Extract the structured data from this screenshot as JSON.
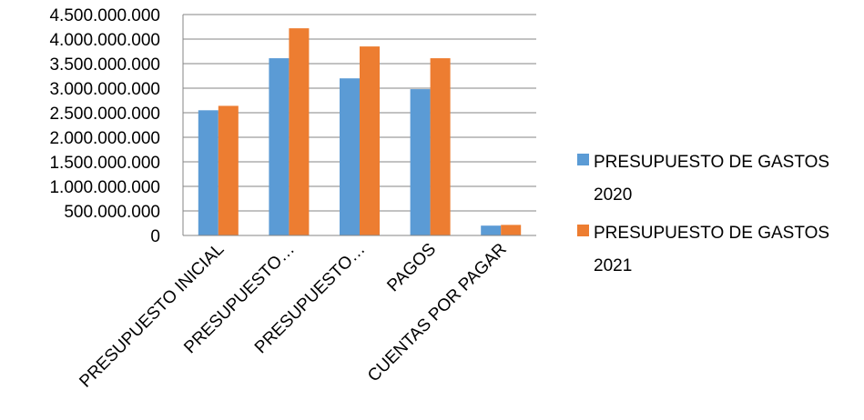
{
  "chart_data": {
    "type": "bar",
    "categories": [
      "PRESUPUESTO INICIAL",
      "PRESUPUESTO…",
      "PRESUPUESTO…",
      "PAGOS",
      "CUENTAS POR PAGAR"
    ],
    "series": [
      {
        "name": "PRESUPUESTO DE GASTOS 2020",
        "legend_lines": [
          "PRESUPUESTO DE GASTOS",
          "2020"
        ],
        "color": "#5B9BD5",
        "values": [
          2550000000,
          3610000000,
          3200000000,
          2980000000,
          200000000
        ]
      },
      {
        "name": "PRESUPUESTO DE GASTOS 2021",
        "legend_lines": [
          "PRESUPUESTO DE GASTOS",
          "2021"
        ],
        "color": "#ED7D31",
        "values": [
          2640000000,
          4220000000,
          3850000000,
          3610000000,
          215000000
        ]
      }
    ],
    "ylim": [
      0,
      4500000000
    ],
    "yticks": [
      "0",
      "500.000.000",
      "1.000.000.000",
      "1.500.000.000",
      "2.000.000.000",
      "2.500.000.000",
      "3.000.000.000",
      "3.500.000.000",
      "4.000.000.000",
      "4.500.000.000"
    ],
    "grid": true,
    "legend_position": "right"
  }
}
